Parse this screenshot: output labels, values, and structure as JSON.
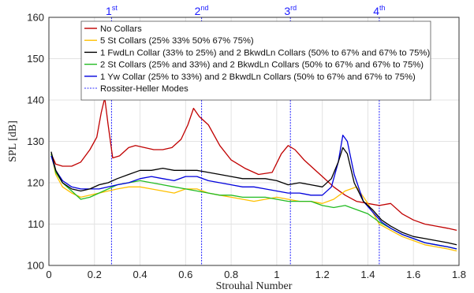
{
  "chart_data": {
    "type": "line",
    "xlabel": "Strouhal Number",
    "ylabel": "SPL [dB]",
    "xlim": [
      0,
      1.8
    ],
    "ylim": [
      100,
      160
    ],
    "xticks": [
      "0",
      "0.2",
      "0.4",
      "0.6",
      "0.8",
      "1",
      "1.2",
      "1.4",
      "1.6",
      "1.8"
    ],
    "yticks": [
      "100",
      "110",
      "120",
      "130",
      "140",
      "150",
      "160"
    ],
    "grid": true,
    "legend_position": "top-center",
    "series": [
      {
        "name": "No Collars",
        "color": "#c00000",
        "x": [
          0.01,
          0.03,
          0.06,
          0.1,
          0.14,
          0.18,
          0.21,
          0.23,
          0.245,
          0.26,
          0.28,
          0.31,
          0.35,
          0.38,
          0.42,
          0.46,
          0.5,
          0.54,
          0.58,
          0.61,
          0.635,
          0.66,
          0.7,
          0.75,
          0.8,
          0.86,
          0.92,
          0.98,
          1.02,
          1.05,
          1.08,
          1.12,
          1.16,
          1.2,
          1.25,
          1.3,
          1.35,
          1.4,
          1.45,
          1.5,
          1.55,
          1.6,
          1.65,
          1.7,
          1.75,
          1.79
        ],
        "y": [
          127,
          124.5,
          124,
          124,
          125,
          128,
          131,
          137,
          140.5,
          134,
          126,
          126.5,
          128.5,
          129,
          128.5,
          128,
          128,
          128.5,
          130.5,
          134,
          138,
          136,
          134,
          129,
          125.5,
          123.5,
          122,
          122.5,
          127,
          129,
          128,
          125.5,
          123.5,
          121.5,
          119,
          117,
          115.5,
          115,
          114.5,
          115,
          112.5,
          111,
          110,
          109.5,
          109,
          108.5
        ]
      },
      {
        "name": "5 St Collars (25% 33% 50% 67% 75%)",
        "color": "#ffc000",
        "x": [
          0.01,
          0.03,
          0.06,
          0.1,
          0.14,
          0.18,
          0.22,
          0.26,
          0.3,
          0.35,
          0.4,
          0.45,
          0.5,
          0.55,
          0.6,
          0.65,
          0.7,
          0.75,
          0.8,
          0.85,
          0.9,
          0.95,
          1.0,
          1.05,
          1.1,
          1.15,
          1.2,
          1.25,
          1.3,
          1.35,
          1.4,
          1.45,
          1.5,
          1.55,
          1.6,
          1.65,
          1.7,
          1.75,
          1.79
        ],
        "y": [
          127,
          122,
          119,
          117.5,
          116.5,
          117,
          117.5,
          118,
          118.5,
          119,
          119,
          118.5,
          118,
          117.5,
          118.5,
          118.5,
          117.5,
          117,
          116.5,
          116,
          115.5,
          116,
          116.5,
          116,
          115.5,
          115.5,
          115,
          116,
          118,
          119,
          115,
          110,
          108.5,
          107,
          106,
          105,
          104.5,
          104,
          103.5
        ]
      },
      {
        "name": "1 FwdLn Collar (33% to 25%) and 2 BkwdLn Collars (50% to 67% and 67% to 75%)",
        "color": "#000000",
        "x": [
          0.01,
          0.03,
          0.06,
          0.1,
          0.14,
          0.18,
          0.22,
          0.26,
          0.3,
          0.35,
          0.4,
          0.45,
          0.5,
          0.55,
          0.6,
          0.65,
          0.7,
          0.75,
          0.8,
          0.85,
          0.9,
          0.95,
          1.0,
          1.05,
          1.1,
          1.15,
          1.2,
          1.24,
          1.27,
          1.29,
          1.31,
          1.34,
          1.38,
          1.42,
          1.46,
          1.5,
          1.55,
          1.6,
          1.65,
          1.7,
          1.75,
          1.79
        ],
        "y": [
          127.5,
          123,
          120,
          118.5,
          118,
          118.5,
          119.5,
          120,
          121,
          122,
          123,
          123,
          123.5,
          123,
          123,
          123,
          122.5,
          122,
          121.5,
          121,
          121,
          121,
          120.5,
          119.5,
          120,
          119.5,
          119,
          121,
          125,
          128.5,
          127,
          120,
          115.5,
          113.5,
          111,
          109.5,
          108,
          107,
          106.5,
          106,
          105.5,
          105
        ]
      },
      {
        "name": "2 St Collars (25% and 33%) and 2 BkwdLn Collars (50% to 67% and 67% to 75%)",
        "color": "#22bb22",
        "x": [
          0.01,
          0.03,
          0.06,
          0.1,
          0.14,
          0.18,
          0.22,
          0.26,
          0.3,
          0.35,
          0.4,
          0.45,
          0.5,
          0.55,
          0.6,
          0.65,
          0.7,
          0.75,
          0.8,
          0.85,
          0.9,
          0.95,
          1.0,
          1.05,
          1.1,
          1.15,
          1.2,
          1.25,
          1.3,
          1.35,
          1.4,
          1.45,
          1.5,
          1.55,
          1.6,
          1.65,
          1.7,
          1.75,
          1.79
        ],
        "y": [
          127,
          122.5,
          120,
          118,
          116,
          116.5,
          117.5,
          118.5,
          119.5,
          120,
          120.5,
          120,
          119.5,
          119,
          118.5,
          118,
          117.5,
          117,
          117,
          116.5,
          116.5,
          116.5,
          116,
          115.5,
          115.5,
          115.5,
          114.5,
          114,
          114.5,
          113.5,
          112.5,
          110.5,
          109,
          107.5,
          106.5,
          105.5,
          105,
          104.5,
          104
        ]
      },
      {
        "name": "1 Yw Collar (25% to 33%) and 2 BkwdLn Collars (50% to 67% and 67% to 75%)",
        "color": "#0000dd",
        "x": [
          0.01,
          0.03,
          0.06,
          0.1,
          0.14,
          0.18,
          0.22,
          0.26,
          0.3,
          0.35,
          0.4,
          0.45,
          0.5,
          0.55,
          0.6,
          0.65,
          0.7,
          0.75,
          0.8,
          0.85,
          0.9,
          0.95,
          1.0,
          1.05,
          1.1,
          1.15,
          1.2,
          1.24,
          1.27,
          1.29,
          1.31,
          1.34,
          1.38,
          1.42,
          1.46,
          1.5,
          1.55,
          1.6,
          1.65,
          1.7,
          1.75,
          1.79
        ],
        "y": [
          126.5,
          123,
          120.5,
          119,
          118.5,
          118.5,
          118.5,
          119,
          119.5,
          120,
          121,
          121.5,
          121,
          120.5,
          121.5,
          121.5,
          120.5,
          120,
          119.5,
          119,
          119,
          118.5,
          118,
          117.5,
          117.5,
          117,
          117,
          119,
          125,
          131.5,
          130,
          122,
          115.5,
          113,
          110.5,
          109,
          107.5,
          106.5,
          105.5,
          105,
          104.5,
          104
        ]
      },
      {
        "name": "Rossiter-Heller Modes",
        "color": "#3333ff",
        "x": [
          0.275,
          0.67,
          1.06,
          1.45
        ],
        "labels": [
          "1st",
          "2nd",
          "3rd",
          "4th"
        ]
      }
    ]
  }
}
